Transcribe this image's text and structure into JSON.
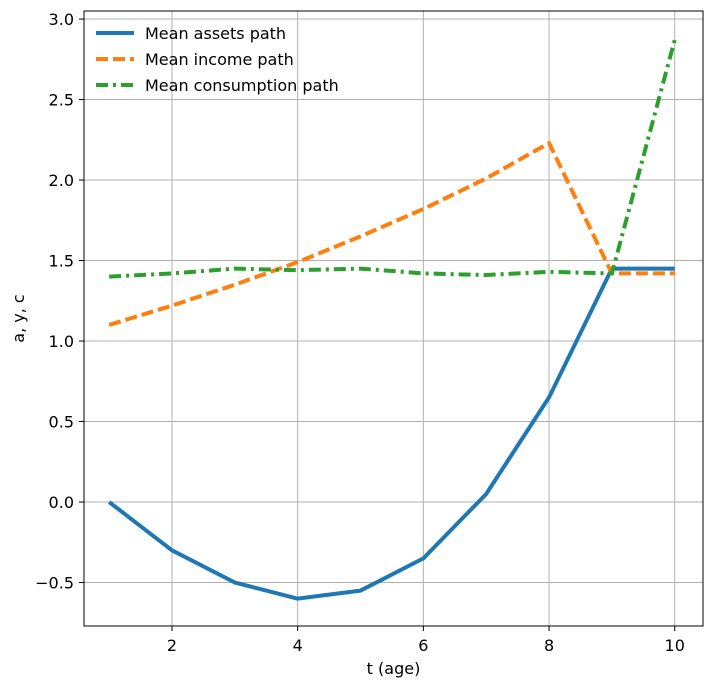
{
  "chart_data": {
    "type": "line",
    "title": "",
    "xlabel": "t (age)",
    "ylabel": "a, y, c",
    "x": [
      1,
      2,
      3,
      4,
      5,
      6,
      7,
      8,
      9,
      10
    ],
    "xlim": [
      0.6,
      10.45
    ],
    "ylim": [
      -0.77,
      3.05
    ],
    "xticks": [
      2,
      4,
      6,
      8,
      10
    ],
    "yticks": [
      -0.5,
      0.0,
      0.5,
      1.0,
      1.5,
      2.0,
      2.5,
      3.0
    ],
    "xtick_labels": [
      "2",
      "4",
      "6",
      "8",
      "10"
    ],
    "ytick_labels": [
      "−0.5",
      "0.0",
      "0.5",
      "1.0",
      "1.5",
      "2.0",
      "2.5",
      "3.0"
    ],
    "grid": true,
    "legend_position": "top-left",
    "series": [
      {
        "name": "Mean assets path",
        "color": "#1f77b4",
        "style": "solid",
        "values": [
          0.0,
          -0.3,
          -0.5,
          -0.6,
          -0.55,
          -0.35,
          0.05,
          0.65,
          1.45,
          1.45
        ]
      },
      {
        "name": "Mean income path",
        "color": "#ff7f0e",
        "style": "dashed",
        "values": [
          1.1,
          1.22,
          1.35,
          1.49,
          1.65,
          1.82,
          2.01,
          2.23,
          1.42,
          1.42
        ]
      },
      {
        "name": "Mean consumption path",
        "color": "#2ca02c",
        "style": "dashdot",
        "values": [
          1.4,
          1.42,
          1.45,
          1.44,
          1.45,
          1.42,
          1.41,
          1.43,
          1.42,
          2.87
        ]
      }
    ]
  }
}
